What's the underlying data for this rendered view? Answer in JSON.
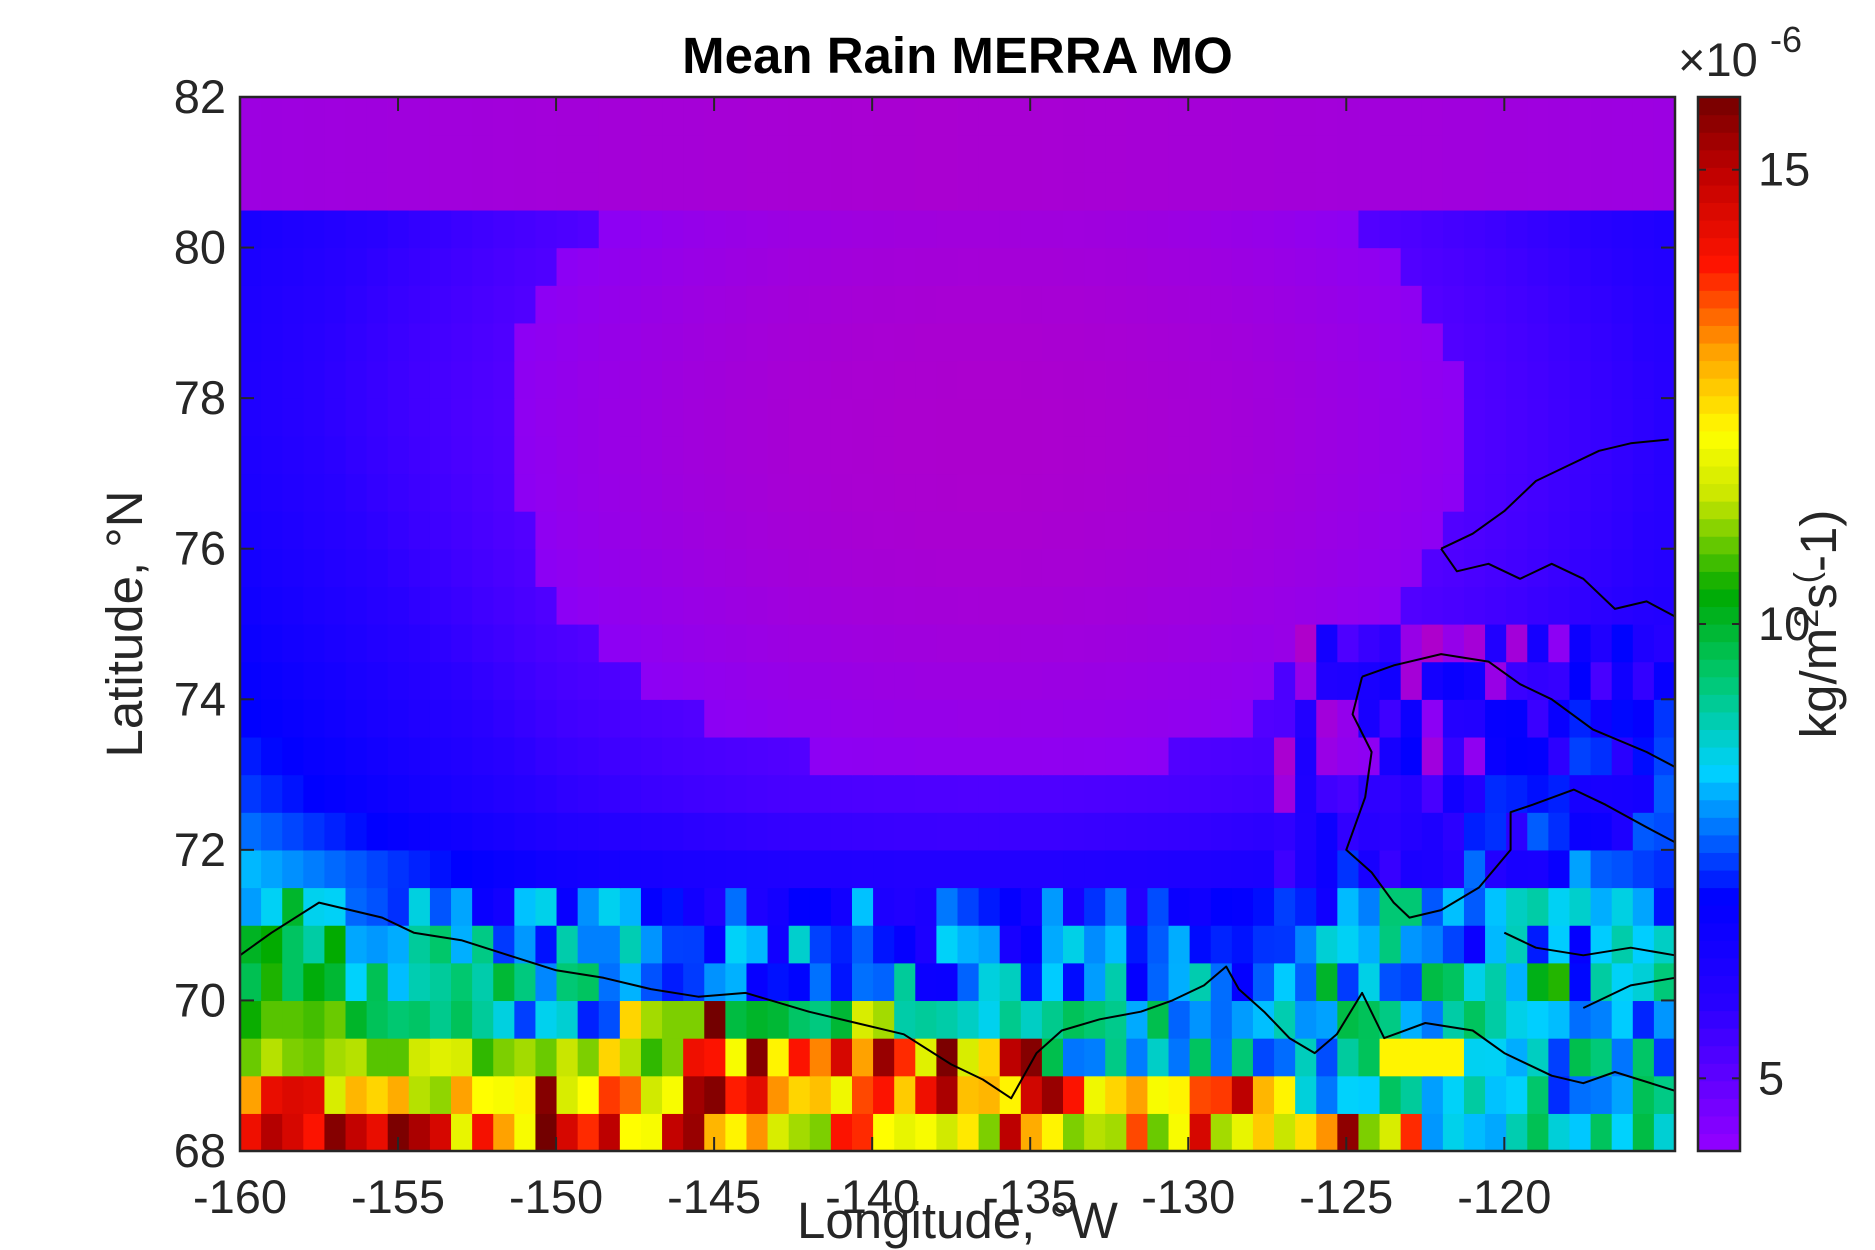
{
  "chart_data": {
    "type": "heatmap",
    "title": "Mean Rain MERRA MO",
    "xlabel": "Longitude, °W",
    "ylabel": "Latitude, °N",
    "xlim": [
      -160,
      -114.6
    ],
    "ylim": [
      68,
      82
    ],
    "x_ticks": [
      -160,
      -155,
      -150,
      -145,
      -140,
      -135,
      -130,
      -125,
      -120
    ],
    "y_ticks": [
      68,
      70,
      72,
      74,
      76,
      78,
      80,
      82
    ],
    "colorbar": {
      "label_base": "kg/m",
      "label_sup1": "2",
      "label_mid": "s",
      "label_sup2": "(",
      "label_tail": "-1)",
      "exponent_prefix": "×10",
      "exponent": "-6",
      "range": [
        4.2,
        15.8
      ],
      "ticks": [
        5,
        10,
        15
      ],
      "colormap": "jet-extended"
    },
    "grid": {
      "lon_start": -160,
      "lon_step": 0.6667,
      "lat_start": 68,
      "lat_step": 0.5,
      "cols": 68,
      "rows": 28,
      "field_summary": "smooth field 4.5-7 over Arctic ocean (lowest near 74-80N, -145 to -128W), rising to 8-10 along 70-72N and 10-15.8 in the southernmost rows west of -136W",
      "high_rows": {
        "lat_68.0": [
          14.2,
          15.1,
          14.6,
          14.0,
          15.6,
          14.9,
          14.3,
          15.7,
          15.2,
          14.6,
          11.8,
          14.1,
          13.0,
          12.0,
          15.8,
          14.6,
          13.8,
          15.0,
          12.1,
          12.0,
          14.9,
          15.4,
          12.8,
          12.2,
          13.1,
          11.6,
          11.2,
          11.0,
          14.0,
          13.8,
          12.1,
          11.8,
          12.0,
          11.5,
          12.3,
          11.0,
          15.0,
          12.9,
          12.2,
          11.0,
          11.3,
          11.2,
          13.6,
          10.9,
          12.0,
          14.6,
          11.2,
          11.8,
          12.6,
          11.4,
          12.4,
          13.1,
          15.5,
          11.0,
          11.6,
          13.8
        ],
        "lat_68.5": [
          13.0,
          14.3,
          14.5,
          14.4,
          11.6,
          12.8,
          12.5,
          12.9,
          11.3,
          11.1,
          13.0,
          12.1,
          12.0,
          12.2,
          15.6,
          11.6,
          12.1,
          13.7,
          13.4,
          11.5,
          12.0,
          15.3,
          15.6,
          13.9,
          14.4,
          13.1,
          12.5,
          12.7,
          11.9,
          13.6,
          14.0,
          12.6,
          14.2,
          15.2,
          12.7,
          12.8,
          12.2,
          14.7,
          15.4,
          14.0,
          11.9,
          12.5,
          13.0,
          12.0,
          12.2,
          13.6,
          13.7,
          15.0,
          12.8,
          12.2
        ],
        "lat_69.0": [
          10.9,
          11.3,
          11.0,
          10.9,
          11.2,
          11.3,
          10.8,
          10.8,
          11.5,
          11.7,
          11.6,
          10.6,
          11.0,
          11.2,
          10.9,
          11.4,
          11.0,
          12.5,
          11.3,
          10.6,
          11.0,
          14.2,
          14.0,
          12.0,
          15.6,
          12.2,
          14.0,
          13.2,
          14.6,
          13.0,
          15.4,
          13.8,
          11.7,
          15.7,
          11.6,
          12.5,
          15.0,
          15.6,
          9.7
        ],
        "lat_69.5": [
          10.4,
          10.8,
          10.8,
          10.7,
          10.9,
          10.0,
          9.6,
          9.4,
          9.5,
          9.2,
          9.6,
          9.1,
          8.6,
          7.4,
          8.5,
          8.7,
          7.2,
          7.5,
          12.5,
          11.2,
          11.0,
          11.0,
          15.8,
          9.8,
          10.0,
          9.9,
          9.5,
          9.3,
          9.9,
          11.6,
          11.2,
          9.0,
          9.1,
          9.0,
          8.8,
          8.5,
          9.2,
          8.8,
          9.2,
          9.6,
          9.4
        ]
      }
    }
  }
}
